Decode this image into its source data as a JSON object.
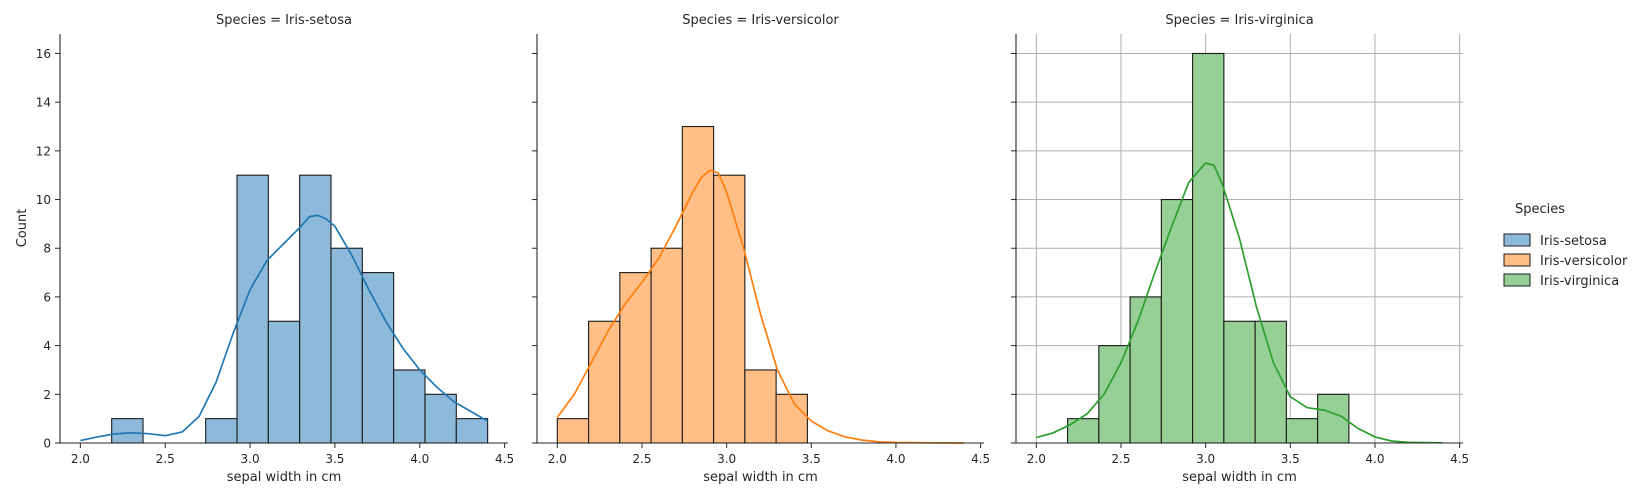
{
  "chart_data": {
    "type": "bar",
    "ylabel": "Count",
    "xlabel": "sepal width in cm",
    "xlim": [
      1.88,
      4.52
    ],
    "ylim": [
      0,
      16.8
    ],
    "xticks": [
      "2.0",
      "2.5",
      "3.0",
      "3.5",
      "4.0",
      "4.5"
    ],
    "yticks": [
      "0",
      "2",
      "4",
      "6",
      "8",
      "10",
      "12",
      "14",
      "16"
    ],
    "grid": "third panel only",
    "legend": {
      "title": "Species",
      "placement": "right",
      "entries": [
        "Iris-setosa",
        "Iris-versicolor",
        "Iris-virginica"
      ]
    },
    "bin_edges": [
      2.0,
      2.1846,
      2.3692,
      2.5538,
      2.7385,
      2.9231,
      3.1077,
      3.2923,
      3.4769,
      3.6615,
      3.8462,
      4.0308,
      4.2154,
      4.4
    ],
    "panels": [
      {
        "title": "Species = Iris-setosa",
        "series": "Iris-setosa",
        "color": "#1f77b4",
        "fill": "#8dbadb",
        "counts": [
          0,
          1,
          0,
          0,
          1,
          11,
          5,
          11,
          8,
          7,
          3,
          2,
          1
        ],
        "kde": [
          [
            2.0,
            0.1
          ],
          [
            2.1,
            0.25
          ],
          [
            2.2,
            0.37
          ],
          [
            2.3,
            0.42
          ],
          [
            2.4,
            0.38
          ],
          [
            2.5,
            0.3
          ],
          [
            2.6,
            0.45
          ],
          [
            2.7,
            1.1
          ],
          [
            2.8,
            2.5
          ],
          [
            2.9,
            4.5
          ],
          [
            3.0,
            6.3
          ],
          [
            3.1,
            7.5
          ],
          [
            3.2,
            8.2
          ],
          [
            3.3,
            8.9
          ],
          [
            3.35,
            9.3
          ],
          [
            3.4,
            9.35
          ],
          [
            3.45,
            9.2
          ],
          [
            3.5,
            8.9
          ],
          [
            3.6,
            7.7
          ],
          [
            3.7,
            6.3
          ],
          [
            3.8,
            5.0
          ],
          [
            3.9,
            3.9
          ],
          [
            4.0,
            3.0
          ],
          [
            4.1,
            2.3
          ],
          [
            4.2,
            1.7
          ],
          [
            4.3,
            1.3
          ],
          [
            4.4,
            0.9
          ]
        ]
      },
      {
        "title": "Species = Iris-versicolor",
        "series": "Iris-versicolor",
        "color": "#ff7f0e",
        "fill": "#ffbf87",
        "counts": [
          1,
          5,
          7,
          8,
          13,
          11,
          3,
          2,
          0,
          0,
          0,
          0,
          0
        ],
        "kde": [
          [
            2.0,
            1.05
          ],
          [
            2.1,
            2.0
          ],
          [
            2.2,
            3.3
          ],
          [
            2.3,
            4.6
          ],
          [
            2.4,
            5.7
          ],
          [
            2.5,
            6.6
          ],
          [
            2.6,
            7.6
          ],
          [
            2.7,
            8.9
          ],
          [
            2.8,
            10.3
          ],
          [
            2.85,
            10.9
          ],
          [
            2.9,
            11.2
          ],
          [
            2.95,
            11.1
          ],
          [
            3.0,
            10.3
          ],
          [
            3.1,
            8.0
          ],
          [
            3.2,
            5.3
          ],
          [
            3.3,
            3.0
          ],
          [
            3.4,
            1.6
          ],
          [
            3.5,
            0.9
          ],
          [
            3.6,
            0.5
          ],
          [
            3.7,
            0.25
          ],
          [
            3.8,
            0.12
          ],
          [
            3.9,
            0.05
          ],
          [
            4.0,
            0.02
          ],
          [
            4.2,
            0.01
          ],
          [
            4.4,
            0.0
          ]
        ]
      },
      {
        "title": "Species = Iris-virginica",
        "series": "Iris-virginica",
        "color": "#2ca02c",
        "fill": "#96d096",
        "counts": [
          0,
          1,
          4,
          6,
          10,
          16,
          5,
          5,
          1,
          2,
          0,
          0,
          0
        ],
        "kde": [
          [
            2.0,
            0.22
          ],
          [
            2.1,
            0.42
          ],
          [
            2.2,
            0.75
          ],
          [
            2.3,
            1.2
          ],
          [
            2.4,
            2.0
          ],
          [
            2.5,
            3.3
          ],
          [
            2.6,
            5.0
          ],
          [
            2.7,
            7.0
          ],
          [
            2.8,
            8.9
          ],
          [
            2.9,
            10.7
          ],
          [
            3.0,
            11.5
          ],
          [
            3.05,
            11.4
          ],
          [
            3.1,
            10.6
          ],
          [
            3.2,
            8.4
          ],
          [
            3.3,
            5.6
          ],
          [
            3.4,
            3.3
          ],
          [
            3.5,
            1.9
          ],
          [
            3.6,
            1.45
          ],
          [
            3.7,
            1.35
          ],
          [
            3.8,
            1.1
          ],
          [
            3.9,
            0.6
          ],
          [
            4.0,
            0.25
          ],
          [
            4.1,
            0.08
          ],
          [
            4.2,
            0.03
          ],
          [
            4.4,
            0.01
          ]
        ]
      }
    ]
  }
}
